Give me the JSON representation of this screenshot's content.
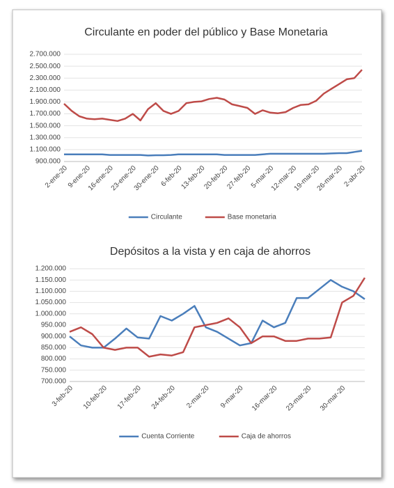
{
  "chart_data": [
    {
      "type": "line",
      "title": "Circulante en poder del público y Base Monetaria",
      "categories": [
        "2-ene-20",
        null,
        null,
        "9-ene-20",
        null,
        null,
        "16-ene-20",
        null,
        null,
        "23-ene-20",
        null,
        null,
        "30-ene-20",
        null,
        null,
        "6-feb-20",
        null,
        null,
        "13-feb-20",
        null,
        null,
        "20-feb-20",
        null,
        null,
        "27-feb-20",
        null,
        null,
        "5-mar-20",
        null,
        null,
        "12-mar-20",
        null,
        null,
        "19-mar-20",
        null,
        null,
        "26-mar-20",
        null,
        null,
        "2-abr-20"
      ],
      "series": [
        {
          "name": "Circulante",
          "color": "#4a7ebb",
          "values": [
            1020000,
            1020000,
            1020000,
            1020000,
            1020000,
            1020000,
            1010000,
            1010000,
            1010000,
            1010000,
            1010000,
            1000000,
            1005000,
            1005000,
            1010000,
            1020000,
            1020000,
            1020000,
            1020000,
            1020000,
            1020000,
            1010000,
            1010000,
            1010000,
            1010000,
            1010000,
            1020000,
            1030000,
            1030000,
            1030000,
            1030000,
            1030000,
            1030000,
            1030000,
            1030000,
            1035000,
            1040000,
            1040000,
            1060000,
            1080000
          ]
        },
        {
          "name": "Base monetaria",
          "color": "#be4b48",
          "values": [
            1870000,
            1750000,
            1660000,
            1620000,
            1610000,
            1620000,
            1600000,
            1580000,
            1620000,
            1700000,
            1590000,
            1780000,
            1880000,
            1750000,
            1700000,
            1750000,
            1880000,
            1900000,
            1910000,
            1950000,
            1970000,
            1940000,
            1860000,
            1830000,
            1800000,
            1700000,
            1760000,
            1720000,
            1710000,
            1730000,
            1800000,
            1850000,
            1860000,
            1920000,
            2040000,
            2120000,
            2200000,
            2280000,
            2300000,
            2440000
          ]
        }
      ],
      "ylim": [
        900000,
        2700000
      ],
      "yticks": [
        {
          "value": 900000,
          "label": "900.000"
        },
        {
          "value": 1100000,
          "label": "1.100.000"
        },
        {
          "value": 1300000,
          "label": "1.300.000"
        },
        {
          "value": 1500000,
          "label": "1.500.000"
        },
        {
          "value": 1700000,
          "label": "1.700.000"
        },
        {
          "value": 1900000,
          "label": "1.900.000"
        },
        {
          "value": 2100000,
          "label": "2.100.000"
        },
        {
          "value": 2300000,
          "label": "2.300.000"
        },
        {
          "value": 2500000,
          "label": "2.500.000"
        },
        {
          "value": 2700000,
          "label": "2.700.000"
        }
      ],
      "legend": "bottom"
    },
    {
      "type": "line",
      "title": "Depósitos a la vista y en caja de ahorros",
      "categories": [
        "3-feb-20",
        null,
        null,
        "10-feb-20",
        null,
        null,
        "17-feb-20",
        null,
        null,
        "24-feb-20",
        null,
        null,
        "2-mar-20",
        null,
        null,
        "9-mar-20",
        null,
        null,
        "16-mar-20",
        null,
        null,
        "23-mar-20",
        null,
        null,
        "30-mar-20",
        null,
        null
      ],
      "series": [
        {
          "name": "Cuenta Corriente",
          "color": "#4a7ebb",
          "values": [
            900000,
            860000,
            850000,
            850000,
            890000,
            935000,
            895000,
            890000,
            990000,
            970000,
            1000000,
            1035000,
            940000,
            920000,
            890000,
            860000,
            870000,
            970000,
            940000,
            960000,
            1070000,
            1070000,
            1110000,
            1150000,
            1120000,
            1100000,
            1065000
          ]
        },
        {
          "name": "Caja de ahorros",
          "color": "#be4b48",
          "values": [
            920000,
            940000,
            910000,
            850000,
            840000,
            850000,
            850000,
            810000,
            820000,
            815000,
            830000,
            940000,
            950000,
            960000,
            980000,
            940000,
            870000,
            900000,
            900000,
            880000,
            880000,
            890000,
            890000,
            895000,
            1050000,
            1080000,
            1160000
          ]
        }
      ],
      "ylim": [
        700000,
        1200000
      ],
      "yticks": [
        {
          "value": 700000,
          "label": "700.000"
        },
        {
          "value": 750000,
          "label": "750.000"
        },
        {
          "value": 800000,
          "label": "800.000"
        },
        {
          "value": 850000,
          "label": "850.000"
        },
        {
          "value": 900000,
          "label": "900.000"
        },
        {
          "value": 950000,
          "label": "950.000"
        },
        {
          "value": 1000000,
          "label": "1.000.000"
        },
        {
          "value": 1050000,
          "label": "1.050.000"
        },
        {
          "value": 1100000,
          "label": "1.100.000"
        },
        {
          "value": 1150000,
          "label": "1.150.000"
        },
        {
          "value": 1200000,
          "label": "1.200.000"
        }
      ],
      "legend": "bottom"
    }
  ]
}
